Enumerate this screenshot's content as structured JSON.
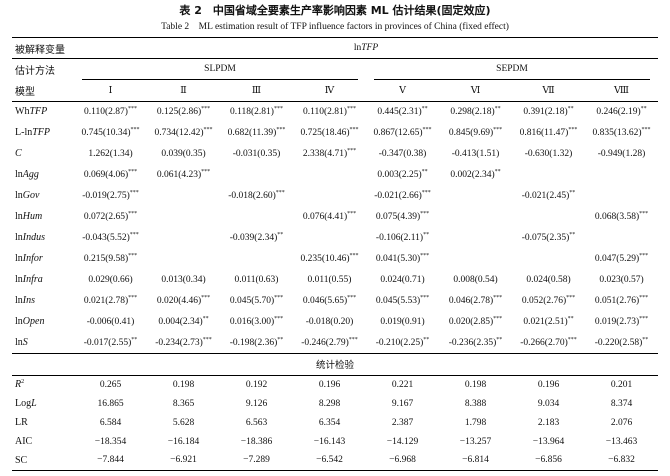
{
  "title": "表 2　中国省域全要素生产率影响因素 ML 估计结果(固定效应)",
  "subtitle": "Table 2　ML estimation result of TFP influence factors in provinces of China (fixed effect)",
  "table": {
    "header": {
      "dependent_label": "被解释变量",
      "dependent": {
        "plain": "ln",
        "italic": "TFP"
      },
      "method_label": "估计方法",
      "methods": [
        "SLPDM",
        "SEPDM"
      ],
      "model_label": "模型",
      "models": [
        "Ⅰ",
        "Ⅱ",
        "Ⅲ",
        "Ⅳ",
        "Ⅴ",
        "Ⅵ",
        "Ⅶ",
        "Ⅷ"
      ]
    },
    "rows": [
      {
        "label": {
          "plain": "Wh",
          "italic": "TFP"
        },
        "cells": [
          {
            "text": "0.110(2.87)",
            "sup": "***"
          },
          {
            "text": "0.125(2.86)",
            "sup": "***"
          },
          {
            "text": "0.118(2.81)",
            "sup": "***"
          },
          {
            "text": "0.110(2.81)",
            "sup": "***"
          },
          {
            "text": "0.445(2.31)",
            "sup": "**"
          },
          {
            "text": "0.298(2.18)",
            "sup": "**"
          },
          {
            "text": "0.391(2.18)",
            "sup": "**"
          },
          {
            "text": "0.246(2.19)",
            "sup": "**"
          }
        ]
      },
      {
        "label": {
          "plain": "L-ln",
          "italic": "TFP"
        },
        "cells": [
          {
            "text": "0.745(10.34)",
            "sup": "***"
          },
          {
            "text": "0.734(12.42)",
            "sup": "***"
          },
          {
            "text": "0.682(11.39)",
            "sup": "***"
          },
          {
            "text": "0.725(18.46)",
            "sup": "***"
          },
          {
            "text": "0.867(12.65)",
            "sup": "***"
          },
          {
            "text": "0.845(9.69)",
            "sup": "***"
          },
          {
            "text": "0.816(11.47)",
            "sup": "***"
          },
          {
            "text": "0.835(13.62)",
            "sup": "***"
          }
        ]
      },
      {
        "label": {
          "italic": "C"
        },
        "cells": [
          {
            "text": "1.262(1.34)"
          },
          {
            "text": "0.039(0.35)"
          },
          {
            "text": "-0.031(0.35)"
          },
          {
            "text": "2.338(4.71)",
            "sup": "***"
          },
          {
            "text": "-0.347(0.38)"
          },
          {
            "text": "-0.413(1.51)"
          },
          {
            "text": "-0.630(1.32)"
          },
          {
            "text": "-0.949(1.28)"
          }
        ]
      },
      {
        "label": {
          "plain": "ln",
          "italic": "Agg"
        },
        "cells": [
          {
            "text": "0.069(4.06)",
            "sup": "***"
          },
          {
            "text": "0.061(4.23)",
            "sup": "***"
          },
          null,
          null,
          {
            "text": "0.003(2.25)",
            "sup": "**"
          },
          {
            "text": "0.002(2.34)",
            "sup": "**"
          },
          null,
          null
        ]
      },
      {
        "label": {
          "plain": "ln",
          "italic": "Gov"
        },
        "cells": [
          {
            "text": "-0.019(2.75)",
            "sup": "***"
          },
          null,
          {
            "text": "-0.018(2.60)",
            "sup": "***"
          },
          null,
          {
            "text": "-0.021(2.66)",
            "sup": "***"
          },
          null,
          {
            "text": "-0.021(2.45)",
            "sup": "**"
          },
          null
        ]
      },
      {
        "label": {
          "plain": "ln",
          "italic": "Hum"
        },
        "cells": [
          {
            "text": "0.072(2.65)",
            "sup": "***"
          },
          null,
          null,
          {
            "text": "0.076(4.41)",
            "sup": "***"
          },
          {
            "text": "0.075(4.39)",
            "sup": "***"
          },
          null,
          null,
          {
            "text": "0.068(3.58)",
            "sup": "***"
          }
        ]
      },
      {
        "label": {
          "plain": "ln",
          "italic": "Indus"
        },
        "cells": [
          {
            "text": "-0.043(5.52)",
            "sup": "***"
          },
          null,
          {
            "text": "-0.039(2.34)",
            "sup": "**"
          },
          null,
          {
            "text": "-0.106(2.11)",
            "sup": "**"
          },
          null,
          {
            "text": "-0.075(2.35)",
            "sup": "**"
          },
          null
        ]
      },
      {
        "label": {
          "plain": "ln",
          "italic": "Infor"
        },
        "cells": [
          {
            "text": "0.215(9.58)",
            "sup": "***"
          },
          null,
          null,
          {
            "text": "0.235(10.46)",
            "sup": "***"
          },
          {
            "text": "0.041(5.30)",
            "sup": "***"
          },
          null,
          null,
          {
            "text": "0.047(5.29)",
            "sup": "***"
          }
        ]
      },
      {
        "label": {
          "plain": "ln",
          "italic": "Infra"
        },
        "cells": [
          {
            "text": "0.029(0.66)"
          },
          {
            "text": "0.013(0.34)"
          },
          {
            "text": "0.011(0.63)"
          },
          {
            "text": "0.011(0.55)"
          },
          {
            "text": "0.024(0.71)"
          },
          {
            "text": "0.008(0.54)"
          },
          {
            "text": "0.024(0.58)"
          },
          {
            "text": "0.023(0.57)"
          }
        ]
      },
      {
        "label": {
          "plain": "ln",
          "italic": "Ins"
        },
        "cells": [
          {
            "text": "0.021(2.78)",
            "sup": "***"
          },
          {
            "text": "0.020(4.46)",
            "sup": "***"
          },
          {
            "text": "0.045(5.70)",
            "sup": "***"
          },
          {
            "text": "0.046(5.65)",
            "sup": "***"
          },
          {
            "text": "0.045(5.53)",
            "sup": "***"
          },
          {
            "text": "0.046(2.78)",
            "sup": "***"
          },
          {
            "text": "0.052(2.76)",
            "sup": "***"
          },
          {
            "text": "0.051(2.76)",
            "sup": "***"
          }
        ]
      },
      {
        "label": {
          "plain": "ln",
          "italic": "Open"
        },
        "cells": [
          {
            "text": "-0.006(0.41)"
          },
          {
            "text": "0.004(2.34)",
            "sup": "**"
          },
          {
            "text": "0.016(3.00)",
            "sup": "***"
          },
          {
            "text": "-0.018(0.20)"
          },
          {
            "text": "0.019(0.91)"
          },
          {
            "text": "0.020(2.85)",
            "sup": "***"
          },
          {
            "text": "0.021(2.51)",
            "sup": "**"
          },
          {
            "text": "0.019(2.73)",
            "sup": "***"
          }
        ]
      },
      {
        "label": {
          "plain": "ln",
          "italic": "S"
        },
        "cells": [
          {
            "text": "-0.017(2.55)",
            "sup": "**"
          },
          {
            "text": "-0.234(2.73)",
            "sup": "***"
          },
          {
            "text": "-0.198(2.36)",
            "sup": "**"
          },
          {
            "text": "-0.246(2.79)",
            "sup": "***"
          },
          {
            "text": "-0.210(2.25)",
            "sup": "**"
          },
          {
            "text": "-0.236(2.35)",
            "sup": "**"
          },
          {
            "text": "-0.266(2.70)",
            "sup": "***"
          },
          {
            "text": "-0.220(2.58)",
            "sup": "**"
          }
        ]
      }
    ],
    "stats_title": "统计检验",
    "stats": [
      {
        "label": {
          "italic": "R",
          "sup": "2"
        },
        "values": [
          "0.265",
          "0.198",
          "0.192",
          "0.196",
          "0.221",
          "0.198",
          "0.196",
          "0.201"
        ]
      },
      {
        "label": {
          "plain": "Log",
          "italic": "L"
        },
        "values": [
          "16.865",
          "8.365",
          "9.126",
          "8.298",
          "9.167",
          "8.388",
          "9.034",
          "8.374"
        ]
      },
      {
        "label": {
          "plain": "LR"
        },
        "values": [
          "6.584",
          "5.628",
          "6.563",
          "6.354",
          "2.387",
          "1.798",
          "2.183",
          "2.076"
        ]
      },
      {
        "label": {
          "plain": "AIC"
        },
        "values": [
          "−18.354",
          "−16.184",
          "−18.386",
          "−16.143",
          "−14.129",
          "−13.257",
          "−13.964",
          "−13.463"
        ]
      },
      {
        "label": {
          "plain": "SC"
        },
        "values": [
          "−7.844",
          "−6.921",
          "−7.289",
          "−6.542",
          "−6.968",
          "−6.814",
          "−6.856",
          "−6.832"
        ]
      }
    ]
  }
}
